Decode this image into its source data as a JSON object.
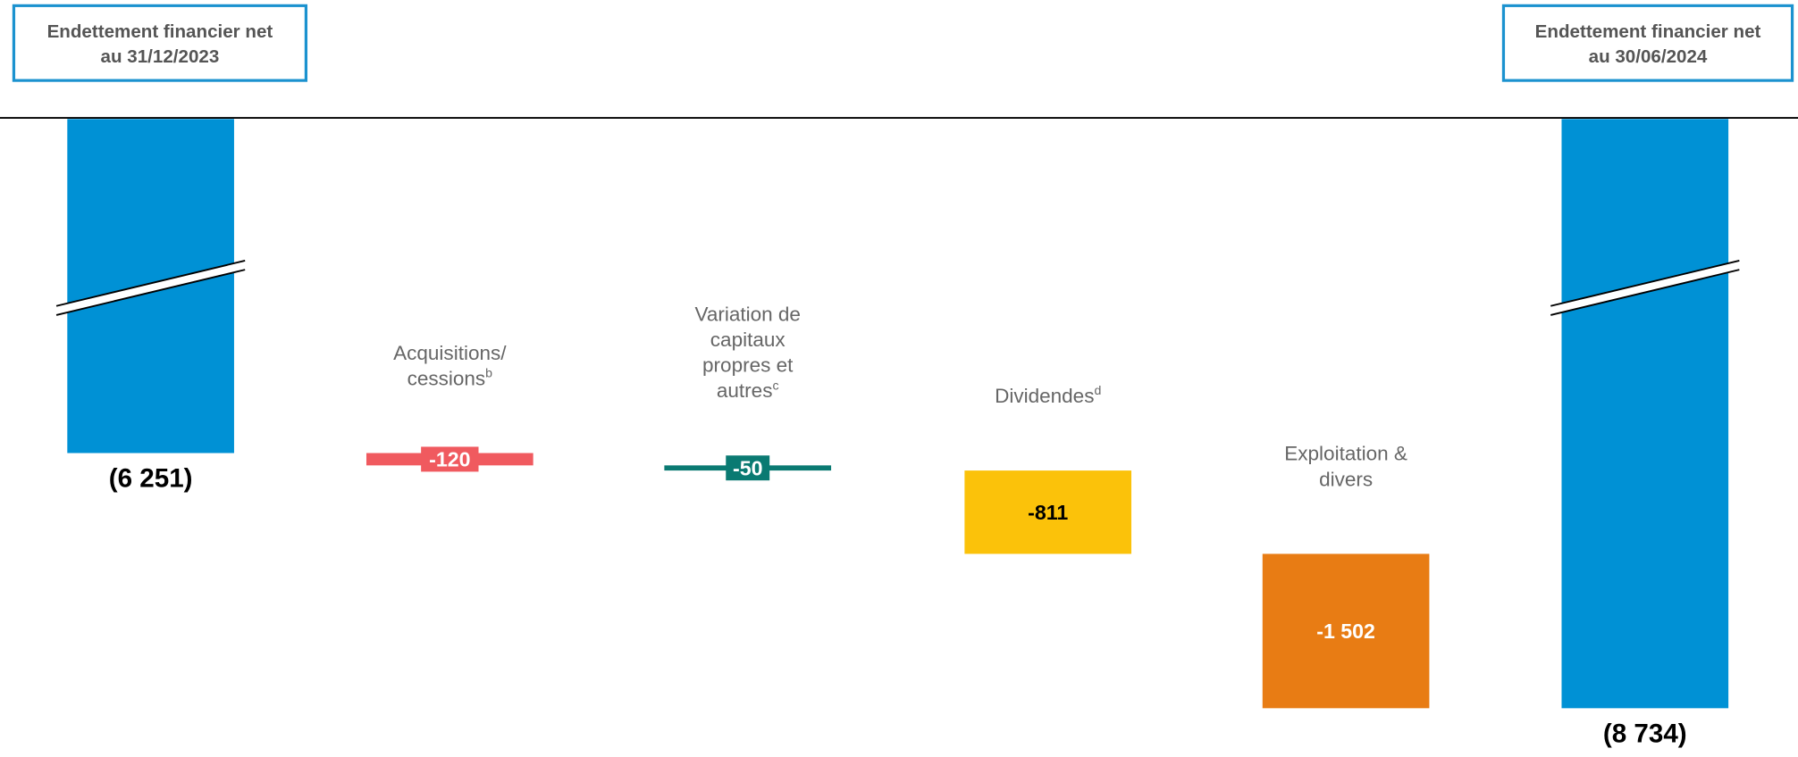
{
  "chart_data": {
    "type": "waterfall",
    "categories": [
      [
        "Endettement financier net",
        "au 31/12/2023"
      ],
      [
        "Acquisitions/",
        "cessions"
      ],
      [
        "Variation de",
        "capitaux",
        "propres et",
        "autres"
      ],
      [
        "Dividendes"
      ],
      [
        "Exploitation &",
        "divers"
      ],
      [
        "Endettement financier net",
        "au 30/06/2024"
      ]
    ],
    "footnotes": [
      null,
      "b",
      "c",
      "d",
      null,
      null
    ],
    "measure": [
      "total",
      "relative",
      "relative",
      "relative",
      "relative",
      "total"
    ],
    "values": [
      -6251,
      -120,
      -50,
      -811,
      -1502,
      -8734
    ],
    "value_labels": [
      "(6 251)",
      "-120",
      "-50",
      "-811",
      "-1 502",
      "(8 734)"
    ],
    "colors": [
      "#0091d5",
      "#f05a5f",
      "#0a7a72",
      "#fbc20a",
      "#e87c14",
      "#0091d5"
    ],
    "label_colors": [
      "#000000",
      "#ffffff",
      "#ffffff",
      "#000000",
      "#ffffff",
      "#000000"
    ],
    "ylim": [
      -8900,
      -3000
    ],
    "axis_break": true
  }
}
